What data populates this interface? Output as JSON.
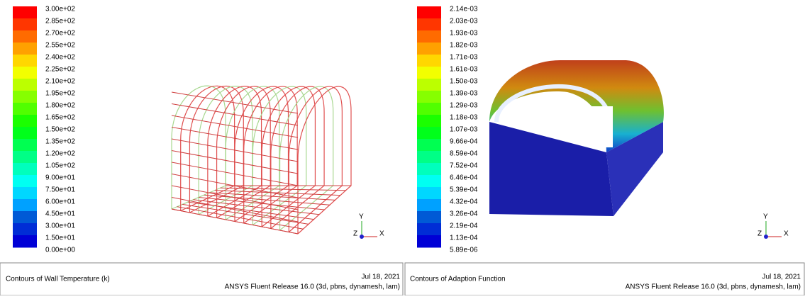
{
  "panels": [
    {
      "legend_labels": [
        "3.00e+02",
        "2.85e+02",
        "2.70e+02",
        "2.55e+02",
        "2.40e+02",
        "2.25e+02",
        "2.10e+02",
        "1.95e+02",
        "1.80e+02",
        "1.65e+02",
        "1.50e+02",
        "1.35e+02",
        "1.20e+02",
        "1.05e+02",
        "9.00e+01",
        "7.50e+01",
        "6.00e+01",
        "4.50e+01",
        "3.00e+01",
        "1.50e+01",
        "0.00e+00"
      ],
      "axes": [
        "Y",
        "Z",
        "X"
      ],
      "title": "Contours of Wall Temperature (k)",
      "date": "Jul 18, 2021",
      "release": "ANSYS Fluent Release 16.0 (3d, pbns, dynamesh, lam)"
    },
    {
      "legend_labels": [
        "2.14e-03",
        "2.03e-03",
        "1.93e-03",
        "1.82e-03",
        "1.71e-03",
        "1.61e-03",
        "1.50e-03",
        "1.39e-03",
        "1.29e-03",
        "1.18e-03",
        "1.07e-03",
        "9.66e-04",
        "8.59e-04",
        "7.52e-04",
        "6.46e-04",
        "5.39e-04",
        "4.32e-04",
        "3.26e-04",
        "2.19e-04",
        "1.13e-04",
        "5.89e-06"
      ],
      "axes": [
        "Y",
        "Z",
        "X"
      ],
      "title": "Contours of Adaption Function",
      "date": "Jul 18, 2021",
      "release": "ANSYS Fluent Release 16.0 (3d, pbns, dynamesh, lam)"
    }
  ]
}
